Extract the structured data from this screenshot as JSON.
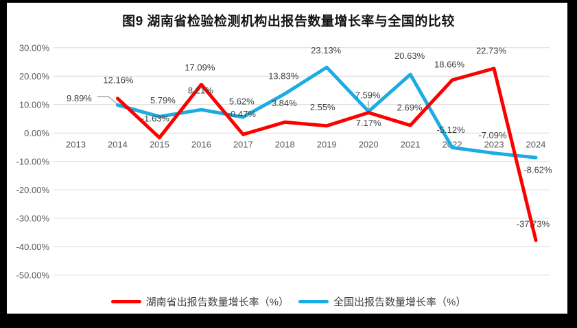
{
  "title": "图9 湖南省检验检测机构出报告数量增长率与全国的比较",
  "chart_data": {
    "type": "line",
    "categories": [
      "2013",
      "2014",
      "2015",
      "2016",
      "2017",
      "2018",
      "2019",
      "2020",
      "2021",
      "2022",
      "2023",
      "2024"
    ],
    "series": [
      {
        "name": "湖南省出报告数量增长率（%）",
        "color": "#FE0000",
        "values": [
          null,
          12.16,
          -1.63,
          17.09,
          -0.47,
          3.84,
          2.55,
          7.17,
          2.69,
          18.66,
          22.73,
          -37.73
        ],
        "labels": [
          null,
          "12.16%",
          "-1.63%",
          "17.09%",
          "-0.47%",
          "3.84%",
          "2.55%",
          "7.17%",
          "2.69%",
          "18.66%",
          "22.73%",
          "-37.73%"
        ]
      },
      {
        "name": "全国出报告数量增长率（%）",
        "color": "#1AACE3",
        "values": [
          null,
          9.89,
          5.79,
          8.21,
          5.62,
          13.83,
          23.13,
          7.59,
          20.63,
          -5.12,
          -7.09,
          -8.62
        ],
        "labels": [
          null,
          "9.89%",
          "5.79%",
          "8.21%",
          "5.62%",
          "13.83%",
          "23.13%",
          "7.59%",
          "20.63%",
          "-5.12%",
          "-7.09%",
          "-8.62%"
        ]
      }
    ],
    "ylim": [
      -50,
      30
    ],
    "ytick_step": 10,
    "ytick_labels": [
      "30.00%",
      "20.00%",
      "10.00%",
      "0.00%",
      "-10.00%",
      "-20.00%",
      "-30.00%",
      "-40.00%",
      "-50.00%"
    ],
    "grid": "horizontal",
    "legend_position": "bottom",
    "colors": {
      "gridline": "#D9D9D9",
      "axis_text": "#595959",
      "data_label_text": "#404040",
      "leader_line": "#A6A6A6",
      "title_text": "#141414",
      "frame": "#000000"
    }
  }
}
